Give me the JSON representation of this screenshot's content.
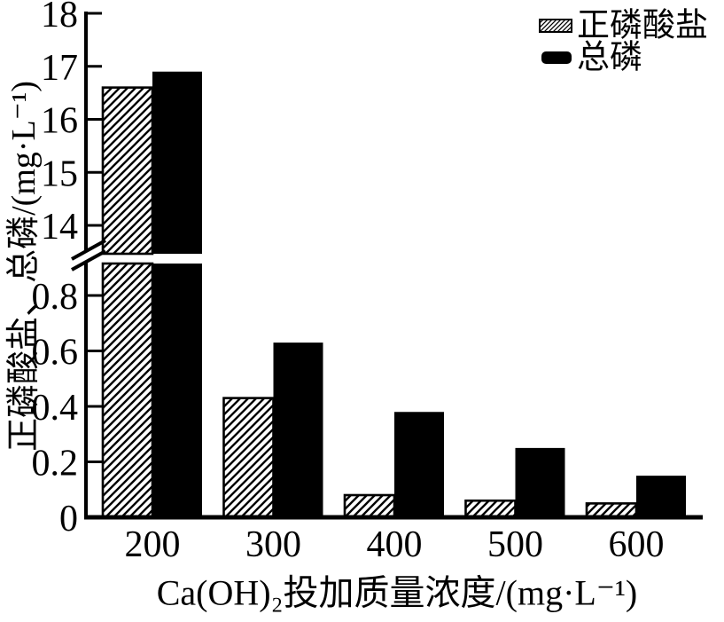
{
  "chart_data": {
    "type": "bar",
    "title": "",
    "categories": [
      "200",
      "300",
      "400",
      "500",
      "600"
    ],
    "series": [
      {
        "key": "orthophosphate",
        "name": "正磷酸盐",
        "style": "hatched",
        "values": [
          16.6,
          0.43,
          0.08,
          0.06,
          0.05
        ]
      },
      {
        "key": "total-phosphorus",
        "name": "总磷",
        "style": "solid",
        "values": [
          16.9,
          0.63,
          0.38,
          0.25,
          0.15
        ]
      }
    ],
    "xlabel": "Ca(OH)₂投加质量浓度/(mg·L⁻¹)",
    "ylabel": "正磷酸盐、总磷/(mg·L⁻¹)",
    "y_axis": {
      "broken": true,
      "upper_ticks": [
        "18",
        "17",
        "16",
        "15",
        "14"
      ],
      "lower_ticks": [
        "0.8",
        "0.6",
        "0.4",
        "0.2",
        "0"
      ],
      "upper_range": [
        14,
        18
      ],
      "lower_range": [
        0,
        0.9
      ]
    },
    "legend_position": "top-right",
    "grid": false,
    "colors": {
      "foreground": "#000000",
      "background": "#ffffff"
    }
  }
}
